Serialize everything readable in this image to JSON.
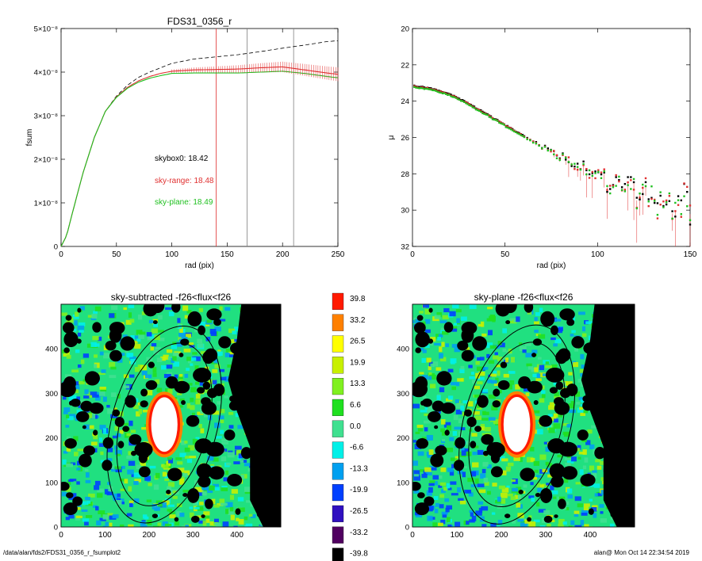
{
  "page": {
    "footer_left": "/data/alan/fds2/FDS31_0356_r_fsumplot2",
    "footer_right": "alan@  Mon Oct 14 22:34:54 2019"
  },
  "chart_data": [
    {
      "id": "fsum",
      "type": "line",
      "title": "FDS31_0356_r",
      "xlabel": "rad (pix)",
      "ylabel": "fsum",
      "xlim": [
        0,
        250
      ],
      "ylim": [
        0,
        5e-08
      ],
      "xticks": [
        0,
        50,
        100,
        150,
        200,
        250
      ],
      "yticks": [
        {
          "value": 0,
          "label": "0"
        },
        {
          "value": 1e-08,
          "label": "1×10⁻⁸"
        },
        {
          "value": 2e-08,
          "label": "2×10⁻⁸"
        },
        {
          "value": 3e-08,
          "label": "3×10⁻⁸"
        },
        {
          "value": 4e-08,
          "label": "4×10⁻⁸"
        },
        {
          "value": 5e-08,
          "label": "5×10⁻⁸"
        }
      ],
      "vlines": [
        {
          "x": 140,
          "color": "#e03030"
        },
        {
          "x": 168,
          "color": "#808080"
        },
        {
          "x": 210,
          "color": "#808080"
        }
      ],
      "annotations": [
        {
          "text": "skybox0: 18.42",
          "color": "#000000"
        },
        {
          "text": "sky-range: 18.48",
          "color": "#e03030"
        },
        {
          "text": "sky-plane: 18.49",
          "color": "#20c020"
        }
      ],
      "series": [
        {
          "id": "skybox0",
          "color": "#000000",
          "dash": true,
          "x": [
            0,
            5,
            10,
            20,
            30,
            40,
            50,
            60,
            70,
            80,
            90,
            100,
            120,
            140,
            160,
            180,
            200,
            220,
            240,
            250
          ],
          "y": [
            0,
            2.5e-09,
            7.5e-09,
            1.7e-08,
            2.5e-08,
            3.1e-08,
            3.45e-08,
            3.7e-08,
            3.88e-08,
            4e-08,
            4.1e-08,
            4.2e-08,
            4.3e-08,
            4.35e-08,
            4.4e-08,
            4.47e-08,
            4.55e-08,
            4.62e-08,
            4.7e-08,
            4.72e-08
          ]
        },
        {
          "id": "sky-range",
          "color": "#e03030",
          "dash": false,
          "x": [
            0,
            5,
            10,
            20,
            30,
            40,
            50,
            60,
            70,
            80,
            90,
            100,
            120,
            140,
            160,
            180,
            200,
            220,
            240,
            250
          ],
          "y": [
            0,
            2.5e-09,
            7.5e-09,
            1.7e-08,
            2.5e-08,
            3.1e-08,
            3.43e-08,
            3.65e-08,
            3.8e-08,
            3.9e-08,
            3.97e-08,
            4.02e-08,
            4.05e-08,
            4.06e-08,
            4.07e-08,
            4.1e-08,
            4.12e-08,
            4.05e-08,
            3.98e-08,
            3.95e-08
          ]
        },
        {
          "id": "sky-plane",
          "color": "#20c020",
          "dash": false,
          "x": [
            0,
            5,
            10,
            20,
            30,
            40,
            50,
            60,
            70,
            80,
            90,
            100,
            120,
            140,
            160,
            180,
            200,
            220,
            240,
            250
          ],
          "y": [
            0,
            2.5e-09,
            7.5e-09,
            1.7e-08,
            2.5e-08,
            3.1e-08,
            3.42e-08,
            3.63e-08,
            3.77e-08,
            3.86e-08,
            3.92e-08,
            3.97e-08,
            3.98e-08,
            3.98e-08,
            3.98e-08,
            4e-08,
            4.02e-08,
            3.97e-08,
            3.9e-08,
            3.87e-08
          ]
        }
      ],
      "errorbar_range": [
        150,
        250
      ]
    },
    {
      "id": "mu",
      "type": "scatter",
      "title": "",
      "xlabel": "rad (pix)",
      "ylabel": "μ",
      "xlim": [
        0,
        150
      ],
      "ylim": [
        32,
        20
      ],
      "xticks": [
        0,
        50,
        100,
        150
      ],
      "yticks": [
        20,
        22,
        24,
        26,
        28,
        30,
        32
      ],
      "profile": {
        "x": [
          0,
          10,
          20,
          30,
          40,
          50,
          60,
          70,
          80,
          90,
          100,
          110,
          120,
          130,
          140,
          150
        ],
        "mu": [
          23.15,
          23.3,
          23.6,
          24.1,
          24.7,
          25.3,
          25.9,
          26.5,
          27.1,
          27.6,
          28.1,
          28.6,
          28.9,
          29.3,
          29.6,
          29.9
        ]
      },
      "markers": [
        {
          "name": "skybox0",
          "color": "#000000"
        },
        {
          "name": "sky-range",
          "color": "#e03030"
        },
        {
          "name": "sky-plane",
          "color": "#20c020"
        }
      ]
    },
    {
      "id": "img1",
      "type": "heatmap",
      "title": "sky-subtracted -f26<flux<f26",
      "xlim": [
        0,
        500
      ],
      "ylim": [
        0,
        500
      ],
      "xticks": [
        0,
        100,
        200,
        300,
        400
      ],
      "yticks": [
        0,
        100,
        200,
        300,
        400
      ],
      "galaxy_center": [
        235,
        230
      ],
      "ellipses": [
        {
          "a": 100,
          "b": 190,
          "angle": -15
        },
        {
          "a": 120,
          "b": 230,
          "angle": -15
        }
      ]
    },
    {
      "id": "img2",
      "type": "heatmap",
      "title": "sky-plane -f26<flux<f26",
      "xlim": [
        0,
        500
      ],
      "ylim": [
        0,
        500
      ],
      "xticks": [
        0,
        100,
        200,
        300,
        400
      ],
      "yticks": [
        0,
        100,
        200,
        300,
        400
      ],
      "galaxy_center": [
        235,
        230
      ],
      "ellipses": [
        {
          "a": 100,
          "b": 190,
          "angle": -15
        },
        {
          "a": 120,
          "b": 230,
          "angle": -15
        }
      ]
    },
    {
      "id": "colorbar",
      "type": "table",
      "levels": [
        {
          "label": "39.8",
          "color": "#ff1a00"
        },
        {
          "label": "33.2",
          "color": "#ff8000"
        },
        {
          "label": "26.5",
          "color": "#ffff00"
        },
        {
          "label": "19.9",
          "color": "#c8f000"
        },
        {
          "label": "13.3",
          "color": "#80f020"
        },
        {
          "label": "6.6",
          "color": "#20e020"
        },
        {
          "label": "0.0",
          "color": "#40e090"
        },
        {
          "label": "-6.6",
          "color": "#00f0e8"
        },
        {
          "label": "-13.3",
          "color": "#00a0f0"
        },
        {
          "label": "-19.9",
          "color": "#0040ff"
        },
        {
          "label": "-26.5",
          "color": "#3010c0"
        },
        {
          "label": "-33.2",
          "color": "#500060"
        },
        {
          "label": "-39.8",
          "color": "#000000"
        }
      ]
    }
  ]
}
